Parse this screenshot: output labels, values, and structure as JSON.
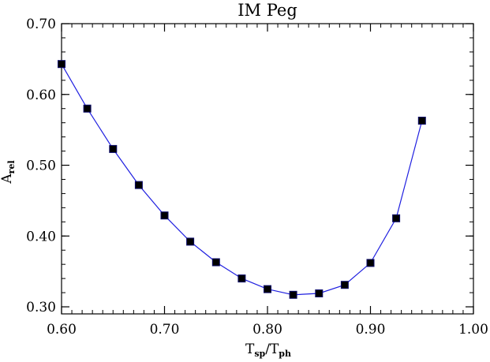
{
  "chart_data": {
    "type": "line",
    "title": "IM Peg",
    "xlabel": {
      "main": "T",
      "sub1": "sp",
      "sep": "/T",
      "sub2": "ph"
    },
    "ylabel": {
      "main": "A",
      "sub": "rel"
    },
    "xlim": [
      0.6,
      1.0
    ],
    "ylim": [
      0.29,
      0.7
    ],
    "xticks": [
      0.6,
      0.7,
      0.8,
      0.9,
      1.0
    ],
    "xtick_labels": [
      "0.60",
      "0.70",
      "0.80",
      "0.90",
      "1.00"
    ],
    "yticks": [
      0.3,
      0.4,
      0.5,
      0.6,
      0.7
    ],
    "ytick_labels": [
      "0.30",
      "0.40",
      "0.50",
      "0.60",
      "0.70"
    ],
    "x_minor_step": 0.01,
    "y_minor_step": 0.02,
    "grid": false,
    "line_color": "#1f1fe0",
    "marker_color": "#000000",
    "marker_stroke": "#0a0a6a",
    "series": [
      {
        "x": [
          0.6,
          0.625,
          0.65,
          0.675,
          0.7,
          0.725,
          0.75,
          0.775,
          0.8,
          0.825,
          0.85,
          0.875,
          0.9,
          0.925,
          0.95
        ],
        "y": [
          0.643,
          0.58,
          0.523,
          0.472,
          0.429,
          0.392,
          0.363,
          0.34,
          0.325,
          0.317,
          0.319,
          0.331,
          0.362,
          0.425,
          0.563
        ]
      }
    ]
  }
}
